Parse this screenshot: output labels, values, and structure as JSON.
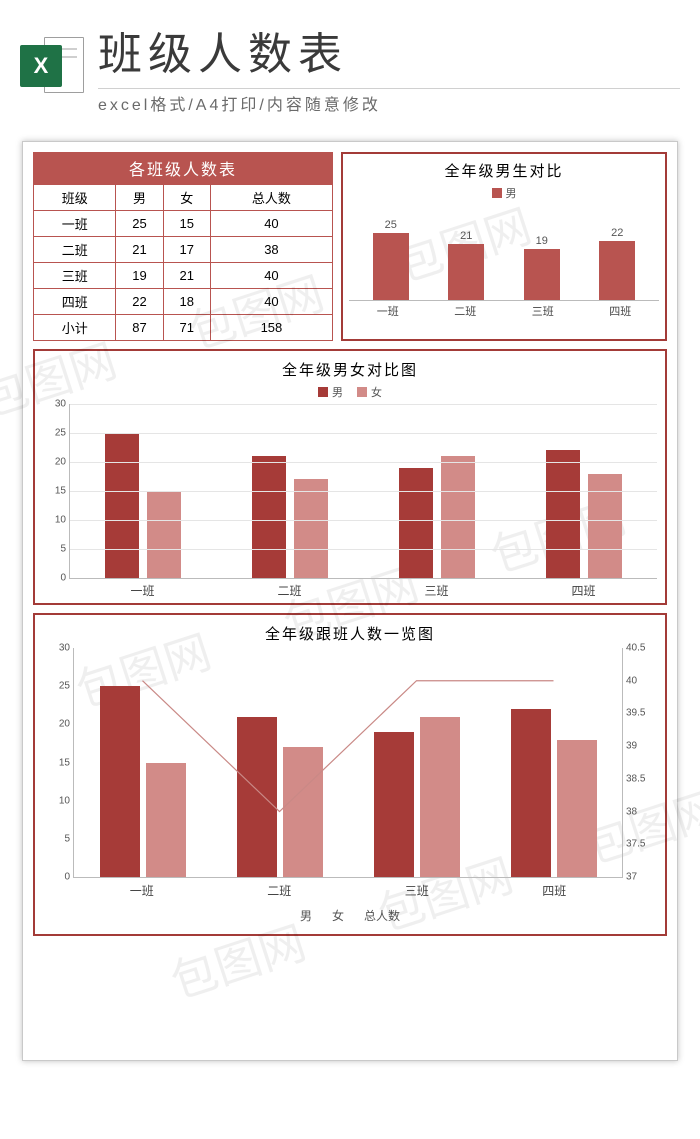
{
  "header": {
    "icon_text": "X",
    "title": "班级人数表",
    "subtitle": "excel格式/A4打印/内容随意修改"
  },
  "watermark_text": "包图网",
  "colors": {
    "male": "#a63b38",
    "female": "#d28b88",
    "border_dark": "#a33b38",
    "border_light": "#c98986",
    "header_bg": "#b85450",
    "grid": "#e5e5e5",
    "line": "#c98986"
  },
  "table": {
    "title": "各班级人数表",
    "columns": [
      "班级",
      "男",
      "女",
      "总人数"
    ],
    "rows": [
      [
        "一班",
        "25",
        "15",
        "40"
      ],
      [
        "二班",
        "21",
        "17",
        "38"
      ],
      [
        "三班",
        "19",
        "21",
        "40"
      ],
      [
        "四班",
        "22",
        "18",
        "40"
      ],
      [
        "小计",
        "87",
        "71",
        "158"
      ]
    ]
  },
  "chart1": {
    "type": "bar",
    "title": "全年级男生对比",
    "legend": "男",
    "categories": [
      "一班",
      "二班",
      "三班",
      "四班"
    ],
    "values": [
      25,
      21,
      19,
      22
    ],
    "ymax": 30,
    "bar_color": "#b85450"
  },
  "chart2": {
    "type": "grouped-bar",
    "title": "全年级男女对比图",
    "legend": [
      "男",
      "女"
    ],
    "categories": [
      "一班",
      "二班",
      "三班",
      "四班"
    ],
    "series": {
      "male": [
        25,
        21,
        19,
        22
      ],
      "female": [
        15,
        17,
        21,
        18
      ]
    },
    "ymax": 30,
    "ytick_step": 5,
    "colors": [
      "#a63b38",
      "#d28b88"
    ]
  },
  "chart3": {
    "type": "bar-line-combo",
    "title": "全年级跟班人数一览图",
    "categories": [
      "一班",
      "二班",
      "三班",
      "四班"
    ],
    "bars": {
      "male": [
        25,
        21,
        19,
        22
      ],
      "female": [
        15,
        17,
        21,
        18
      ]
    },
    "line_total": [
      40,
      38,
      40,
      40
    ],
    "left_axis": {
      "min": 0,
      "max": 30,
      "step": 5
    },
    "right_axis": {
      "min": 37,
      "max": 40.5,
      "step": 0.5
    },
    "legend": [
      "男",
      "女",
      "总人数"
    ],
    "colors": {
      "male": "#a63b38",
      "female": "#d28b88",
      "line": "#c98986"
    }
  }
}
